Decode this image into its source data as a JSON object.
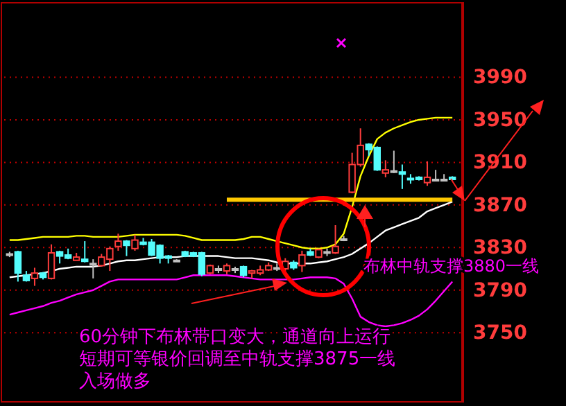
{
  "chart_data": {
    "type": "candlestick",
    "categories": [
      null,
      null,
      null,
      null,
      null,
      null,
      null,
      null,
      null,
      null,
      null,
      null,
      null,
      null,
      null,
      null,
      null,
      null,
      null,
      null,
      null,
      null,
      null,
      null,
      null,
      null,
      null,
      null,
      null,
      null,
      null,
      null,
      null,
      null,
      null,
      null,
      null,
      null,
      null,
      null,
      null,
      null,
      null,
      null,
      null,
      null,
      null,
      null,
      null,
      null,
      null,
      null,
      null,
      null
    ],
    "ohlc": [
      [
        3824,
        3826,
        3821,
        3824
      ],
      [
        3826,
        3827,
        3798,
        3806
      ],
      [
        3804,
        3808,
        3798,
        3799
      ],
      [
        3801,
        3811,
        3794,
        3806
      ],
      [
        3806,
        3807,
        3800,
        3802
      ],
      [
        3801,
        3833,
        3800,
        3825
      ],
      [
        3826,
        3827,
        3815,
        3822
      ],
      [
        3823,
        3829,
        3819,
        3820
      ],
      [
        3818,
        3825,
        3818,
        3821
      ],
      [
        3819,
        3836,
        3816,
        3817
      ],
      [
        3815,
        3819,
        3801,
        3815
      ],
      [
        3813,
        3824,
        3812,
        3821
      ],
      [
        3819,
        3831,
        3808,
        3829
      ],
      [
        3831,
        3843,
        3827,
        3836
      ],
      [
        3836,
        3837,
        3822,
        3832
      ],
      [
        3829,
        3842,
        3827,
        3837
      ],
      [
        3835,
        3839,
        3832,
        3833
      ],
      [
        3835,
        3838,
        3822,
        3823
      ],
      [
        3832,
        3833,
        3815,
        3820
      ],
      [
        3822,
        3823,
        3815,
        3820
      ],
      [
        3818,
        3819,
        3817,
        3818
      ],
      [
        3826,
        3827,
        3821,
        3822
      ],
      [
        3825,
        3826,
        3821,
        3822
      ],
      [
        3825,
        3826,
        3803,
        3805
      ],
      [
        3806,
        3814,
        3805,
        3813
      ],
      [
        3810,
        3813,
        3806,
        3810
      ],
      [
        3808,
        3815,
        3805,
        3813
      ],
      [
        3810,
        3812,
        3806,
        3810
      ],
      [
        3812,
        3813,
        3802,
        3804
      ],
      [
        3806,
        3809,
        3801,
        3808
      ],
      [
        3806,
        3813,
        3804,
        3809
      ],
      [
        3809,
        3816,
        3808,
        3813
      ],
      [
        3811,
        3815,
        3808,
        3811
      ],
      [
        3810,
        3820,
        3808,
        3817
      ],
      [
        3816,
        3818,
        3809,
        3811
      ],
      [
        3813,
        3827,
        3807,
        3823
      ],
      [
        3826,
        3829,
        3822,
        3823
      ],
      [
        3821,
        3829,
        3820,
        3828
      ],
      [
        3826,
        3829,
        3822,
        3826
      ],
      [
        3825,
        3851,
        3824,
        3831
      ],
      [
        3838,
        3841,
        3836,
        3838
      ],
      [
        3882,
        3919,
        3881,
        3908
      ],
      [
        3908,
        3942,
        3906,
        3926
      ],
      [
        3927,
        3928,
        3916,
        3922
      ],
      [
        3924,
        3925,
        3902,
        3903
      ],
      [
        3900,
        3912,
        3896,
        3903
      ],
      [
        3902,
        3921,
        3900,
        3902
      ],
      [
        3901,
        3908,
        3885,
        3899
      ],
      [
        3895,
        3899,
        3890,
        3894
      ],
      [
        3896,
        3897,
        3893,
        3894
      ],
      [
        3891,
        3911,
        3888,
        3896
      ],
      [
        3894,
        3903,
        3893,
        3894
      ],
      [
        3894,
        3899,
        3893,
        3894
      ],
      [
        3896,
        3897,
        3893,
        3894
      ]
    ],
    "colors": [
      "#c0c0c0",
      "#54fcfc",
      "#54fcfc",
      "#ff3c3c",
      "#54fcfc",
      "#ff3c3c",
      "#54fcfc",
      "#54fcfc",
      "#ff3c3c",
      "#54fcfc",
      "#c0c0c0",
      "#ff3c3c",
      "#ff3c3c",
      "#ff3c3c",
      "#54fcfc",
      "#ff3c3c",
      "#54fcfc",
      "#54fcfc",
      "#54fcfc",
      "#54fcfc",
      "#c0c0c0",
      "#54fcfc",
      "#54fcfc",
      "#54fcfc",
      "#ff3c3c",
      "#c0c0c0",
      "#ff3c3c",
      "#c0c0c0",
      "#54fcfc",
      "#ff3c3c",
      "#ff3c3c",
      "#ff3c3c",
      "#c0c0c0",
      "#ff3c3c",
      "#54fcfc",
      "#ff3c3c",
      "#54fcfc",
      "#ff3c3c",
      "#c0c0c0",
      "#ff3c3c",
      "#c0c0c0",
      "#ff3c3c",
      "#ff3c3c",
      "#54fcfc",
      "#54fcfc",
      "#ff3c3c",
      "#c0c0c0",
      "#54fcfc",
      "#54fcfc",
      "#54fcfc",
      "#ff3c3c",
      "#c0c0c0",
      "#c0c0c0",
      "#54fcfc"
    ],
    "series": [
      {
        "type": "line",
        "color": "#ffff00",
        "values": [
          3837,
          3837,
          3838,
          3839,
          3840,
          3840,
          3840,
          3840,
          3841,
          3841,
          3840,
          3840,
          3840,
          3840,
          3841,
          3842,
          3842,
          3842,
          3842,
          3842,
          3842,
          3841,
          3839,
          3837,
          3837,
          3837,
          3837,
          3837,
          3838,
          3840,
          3840,
          3838,
          3836,
          3834,
          3832,
          3830,
          3829,
          3829,
          3830,
          3833,
          3843,
          3868,
          3897,
          3916,
          3932,
          3938,
          3942,
          3945,
          3948,
          3950,
          3951,
          3952,
          3952,
          3952
        ]
      },
      {
        "type": "line",
        "color": "#ffffff",
        "values": [
          3802,
          3803,
          3804,
          3805,
          3806,
          3808,
          3810,
          3811,
          3812,
          3812,
          3812,
          3813,
          3815,
          3817,
          3818,
          3818,
          3819,
          3820,
          3821,
          3821,
          3821,
          3822,
          3822,
          3822,
          3822,
          3822,
          3821,
          3820,
          3820,
          3820,
          3819,
          3818,
          3816,
          3815,
          3815,
          3815,
          3815,
          3816,
          3817,
          3819,
          3821,
          3824,
          3829,
          3834,
          3840,
          3846,
          3849,
          3852,
          3855,
          3858,
          3864,
          3867,
          3870,
          3873
        ]
      },
      {
        "type": "line",
        "color": "#ff00ff",
        "values": [
          3767,
          3769,
          3771,
          3773,
          3775,
          3778,
          3780,
          3783,
          3786,
          3788,
          3790,
          3794,
          3798,
          3800,
          3800,
          3800,
          3800,
          3800,
          3800,
          3800,
          3800,
          3802,
          3804,
          3804,
          3804,
          3804,
          3804,
          3803,
          3802,
          3801,
          3800,
          3800,
          3800,
          3800,
          3800,
          3801,
          3802,
          3802,
          3802,
          3801,
          3796,
          3782,
          3765,
          3760,
          3757,
          3756,
          3757,
          3759,
          3762,
          3766,
          3772,
          3780,
          3789,
          3798
        ]
      },
      {
        "type": "line",
        "color": "#ffc800",
        "values": [
          null,
          null,
          null,
          null,
          null,
          null,
          null,
          null,
          null,
          null,
          null,
          null,
          null,
          null,
          null,
          null,
          null,
          null,
          null,
          null,
          null,
          null,
          null,
          null,
          null,
          null,
          3875,
          3875,
          3875,
          3875,
          3875,
          3875,
          3875,
          3875,
          3875,
          3875,
          3875,
          3875,
          3875,
          3875,
          3875,
          3875,
          3875,
          3875,
          3875,
          3875,
          3875,
          3875,
          3875,
          3875,
          3875,
          3875,
          3875,
          3875
        ]
      }
    ],
    "ylim": [
      3685,
      4060
    ],
    "yticks": [
      3750,
      3790,
      3830,
      3870,
      3910,
      3950,
      3990
    ],
    "grid": "y",
    "tick_labels": "y",
    "annotations": [
      "布林中轨支撑3880一线",
      "60分钟下布林带口变大，通道向上运行",
      "短期可等银价回调至中轨支撑3875一线",
      "入场做多"
    ]
  }
}
